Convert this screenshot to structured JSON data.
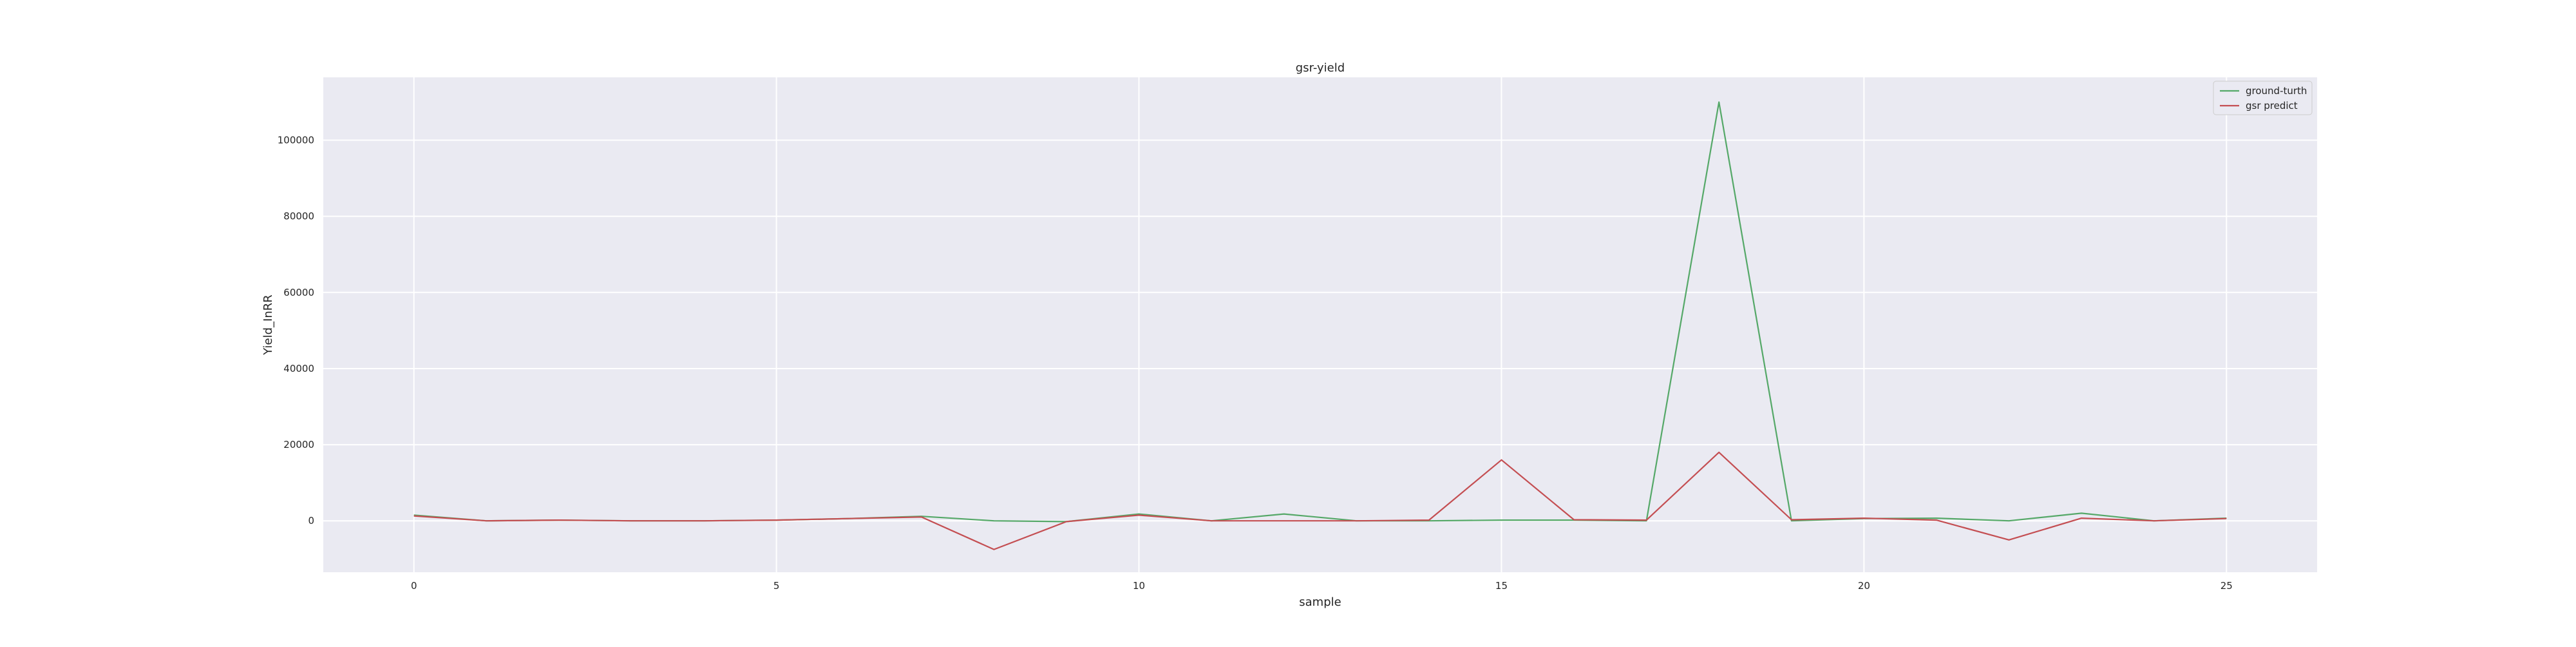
{
  "chart_data": {
    "type": "line",
    "title": "gsr-yield",
    "xlabel": "sample",
    "ylabel": "Yield_InRR",
    "x": [
      0,
      1,
      2,
      3,
      4,
      5,
      6,
      7,
      8,
      9,
      10,
      11,
      12,
      13,
      14,
      15,
      16,
      17,
      18,
      19,
      20,
      21,
      22,
      23,
      24,
      25
    ],
    "xlim": [
      -1.25,
      26.25
    ],
    "ylim": [
      -13500,
      116500
    ],
    "xticks": [
      0,
      5,
      10,
      15,
      20,
      25
    ],
    "yticks": [
      0,
      20000,
      40000,
      60000,
      80000,
      100000
    ],
    "grid": true,
    "legend_position": "top-right",
    "background_color": "#eaeaf2",
    "series": [
      {
        "name": "ground-turth",
        "color": "#55a868",
        "values": [
          1500,
          0,
          200,
          0,
          0,
          200,
          600,
          1200,
          0,
          -200,
          1800,
          0,
          1800,
          0,
          0,
          200,
          200,
          0,
          110000,
          0,
          600,
          700,
          0,
          2000,
          0,
          700
        ]
      },
      {
        "name": "gsr predict",
        "color": "#c44e52",
        "values": [
          1300,
          0,
          200,
          0,
          0,
          200,
          600,
          1000,
          -7500,
          -200,
          1500,
          0,
          0,
          0,
          200,
          16000,
          300,
          200,
          18000,
          300,
          700,
          200,
          -5000,
          700,
          0,
          600
        ]
      }
    ]
  }
}
